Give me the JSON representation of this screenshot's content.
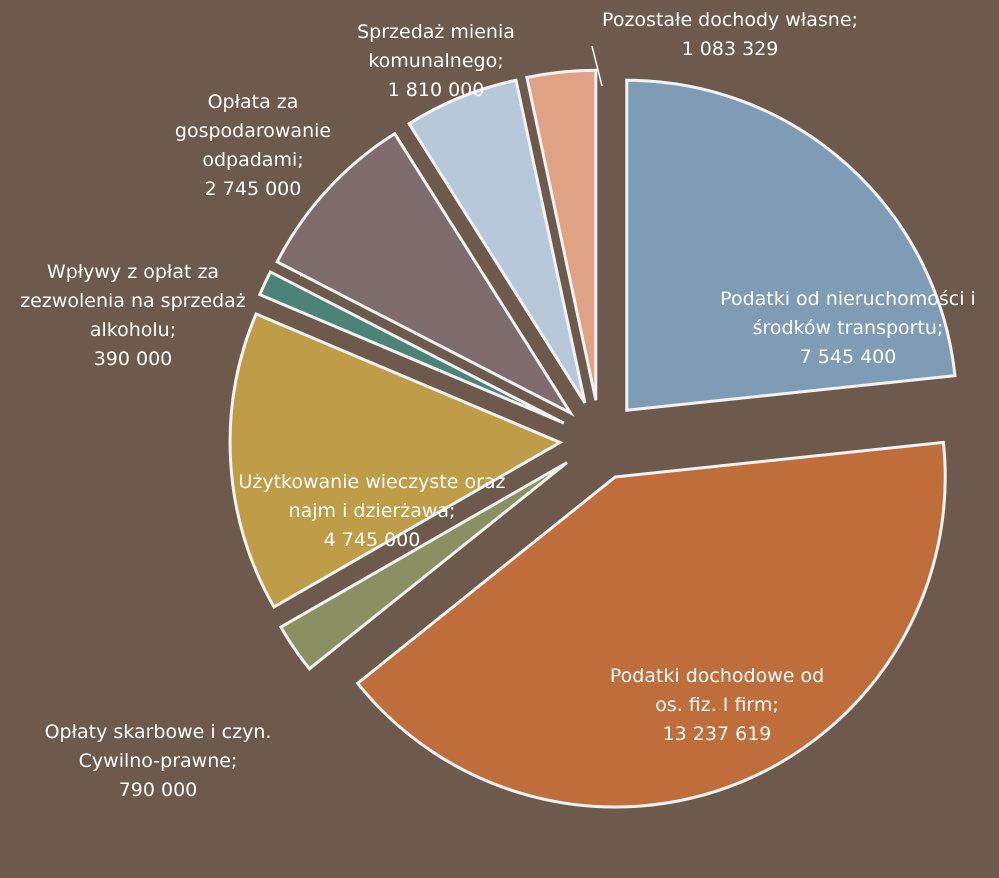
{
  "chart_data": {
    "type": "pie",
    "categories": [
      "Podatki od nieruchomości i środków transportu;",
      "Podatki dochodowe od os. fiz. I firm;",
      "Opłaty skarbowe i czyn. Cywilno-prawne;",
      "Użytkowanie wieczyste oraz najm i dzierżawa;",
      "Wpływy z opłat za zezwolenia na sprzedaż alkoholu;",
      "Opłata za gospodarowanie odpadami;",
      "Sprzedaż mienia komunalnego;",
      "Pozostałe dochody własne;"
    ],
    "values": [
      7545400,
      13237619,
      790000,
      4745000,
      390000,
      2745000,
      1810000,
      1083329
    ],
    "value_labels": [
      "7 545 400",
      "13 237 619",
      "790 000",
      "4 745 000",
      "390 000",
      "2 745 000",
      "1 810 000",
      "1 083 329"
    ],
    "colors": [
      "#7f9cb6",
      "#c06d3c",
      "#8a9061",
      "#bf9c47",
      "#4d8276",
      "#7d6c6b",
      "#b7c8da",
      "#e0a284"
    ]
  }
}
